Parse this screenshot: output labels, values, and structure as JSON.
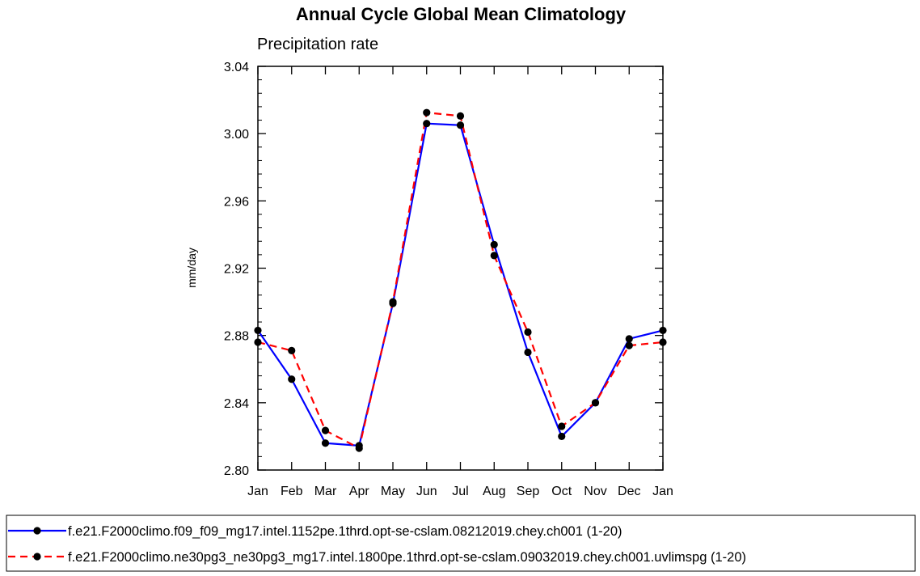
{
  "chart_data": {
    "type": "line",
    "title": "Annual Cycle Global Mean Climatology",
    "subtitle": "Precipitation rate",
    "ylabel": "mm/day",
    "xlabel": "",
    "categories": [
      "Jan",
      "Feb",
      "Mar",
      "Apr",
      "May",
      "Jun",
      "Jul",
      "Aug",
      "Sep",
      "Oct",
      "Nov",
      "Dec",
      "Jan"
    ],
    "ylim": [
      2.8,
      3.04
    ],
    "yticks": [
      "2.80",
      "2.84",
      "2.88",
      "2.92",
      "2.96",
      "3.00",
      "3.04"
    ],
    "ytick_values": [
      2.8,
      2.84,
      2.88,
      2.92,
      2.96,
      3.0,
      3.04
    ],
    "y_minor_step": 0.008,
    "series": [
      {
        "name": "f.e21.F2000climo.f09_f09_mg17.intel.1152pe.1thrd.opt-se-cslam.08212019.chey.ch001 (1-20)",
        "color": "#0000ff",
        "dash": "solid",
        "values": [
          2.883,
          2.854,
          2.816,
          2.8145,
          2.899,
          3.006,
          3.005,
          2.934,
          2.87,
          2.82,
          2.84,
          2.878,
          2.883
        ]
      },
      {
        "name": "f.e21.F2000climo.ne30pg3_ne30pg3_mg17.intel.1800pe.1thrd.opt-se-cslam.09032019.chey.ch001.uvlimspg (1-20)",
        "color": "#ff0000",
        "dash": "dashed",
        "values": [
          2.876,
          2.871,
          2.8235,
          2.813,
          2.9,
          3.0125,
          3.0105,
          2.9275,
          2.882,
          2.826,
          2.84,
          2.874,
          2.876
        ]
      }
    ],
    "legend_position": "bottom"
  }
}
